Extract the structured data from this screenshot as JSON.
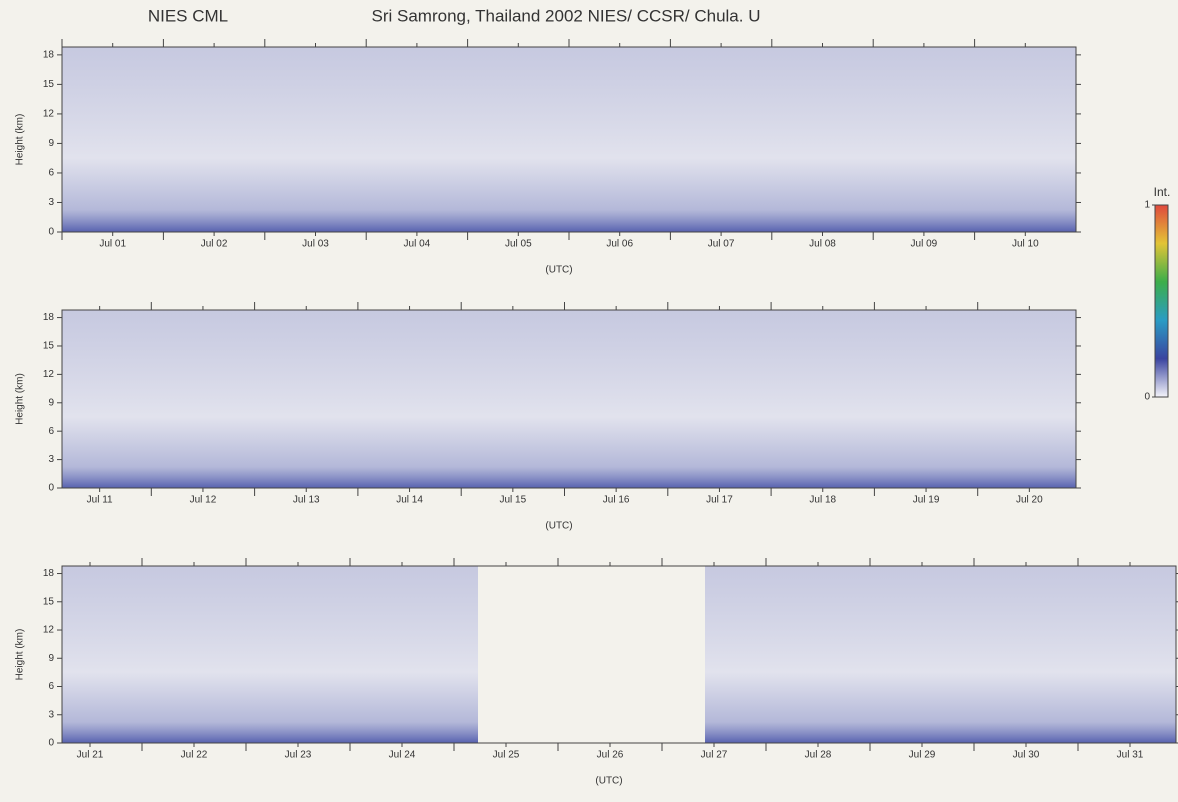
{
  "header": {
    "left": "NIES CML",
    "title": "Sri Samrong, Thailand 2002  NIES/ CCSR/ Chula. U"
  },
  "chart_data": [
    {
      "type": "heatmap",
      "y_label": "Height (km)",
      "x_label": "(UTC)",
      "categories": [
        "Jul 01",
        "Jul 02",
        "Jul 03",
        "Jul 04",
        "Jul 05",
        "Jul 06",
        "Jul 07",
        "Jul 08",
        "Jul 09",
        "Jul 10"
      ],
      "ylim": [
        0,
        18.8
      ],
      "yticks": [
        0,
        3,
        6,
        9,
        12,
        15,
        18
      ]
    },
    {
      "type": "heatmap",
      "y_label": "Height (km)",
      "x_label": "(UTC)",
      "categories": [
        "Jul 11",
        "Jul 12",
        "Jul 13",
        "Jul 14",
        "Jul 15",
        "Jul 16",
        "Jul 17",
        "Jul 18",
        "Jul 19",
        "Jul 20"
      ],
      "ylim": [
        0,
        18.8
      ],
      "yticks": [
        0,
        3,
        6,
        9,
        12,
        15,
        18
      ]
    },
    {
      "type": "heatmap",
      "y_label": "Height (km)",
      "x_label": "(UTC)",
      "categories": [
        "Jul 21",
        "Jul 22",
        "Jul 23",
        "Jul 24",
        "Jul 25",
        "Jul 26",
        "Jul 27",
        "Jul 28",
        "Jul 29",
        "Jul 30",
        "Jul 31"
      ],
      "ylim": [
        0,
        18.8
      ],
      "yticks": [
        0,
        3,
        6,
        9,
        12,
        15,
        18
      ]
    }
  ],
  "colorbar": {
    "title": "Int.",
    "lim": [
      0,
      1
    ],
    "ticks": [
      0,
      1
    ],
    "colors": [
      "#f4f4fa",
      "#3a44a0",
      "#2a9cc4",
      "#3cae4a",
      "#e2c436",
      "#e0483c"
    ]
  }
}
